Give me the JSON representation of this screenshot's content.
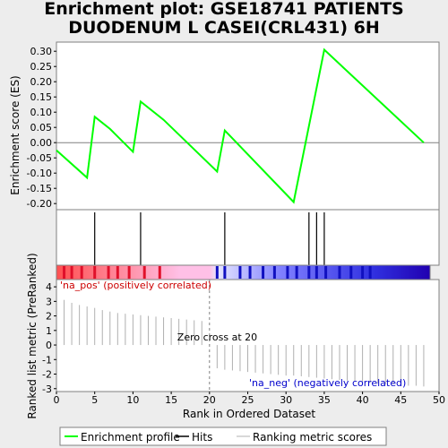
{
  "title_line1": "Enrichment plot: GSE18741 PATIENTS",
  "title_line2": "DUODENUM L CASEI(CRL431) 6H",
  "chart_data": {
    "type": "line",
    "top_panel": {
      "ylabel": "Enrichment score (ES)",
      "ylim": [
        -0.22,
        0.33
      ],
      "yticks": [
        "0.30",
        "0.25",
        "0.20",
        "0.15",
        "0.10",
        "0.05",
        "0.00",
        "-0.05",
        "-0.10",
        "-0.15",
        "-0.20"
      ],
      "ytick_values": [
        0.3,
        0.25,
        0.2,
        0.15,
        0.1,
        0.05,
        0.0,
        -0.05,
        -0.1,
        -0.15,
        -0.2
      ],
      "series": [
        {
          "name": "Enrichment profile",
          "color": "#00ff00",
          "x": [
            0,
            4,
            5,
            7,
            10,
            11,
            14,
            21,
            22,
            31,
            35,
            48
          ],
          "y": [
            -0.025,
            -0.115,
            0.085,
            0.045,
            -0.03,
            0.135,
            0.075,
            -0.095,
            0.04,
            -0.195,
            0.305,
            0.0
          ]
        }
      ]
    },
    "hits": {
      "x": [
        5,
        11,
        22,
        33,
        34,
        35
      ],
      "color": "#000000"
    },
    "ranked_list": {
      "ylabel": "Ranked list metric (PreRanked)",
      "xlabel": "Rank in Ordered Dataset",
      "ylim": [
        -3.2,
        4.5
      ],
      "yticks": [
        "4",
        "3",
        "2",
        "1",
        "0",
        "-1",
        "-2",
        "-3"
      ],
      "ytick_values": [
        4,
        3,
        2,
        1,
        0,
        -1,
        -2,
        -3
      ],
      "xticks": [
        "0",
        "5",
        "10",
        "15",
        "20",
        "25",
        "30",
        "35",
        "40",
        "45",
        "50"
      ],
      "xtick_values": [
        0,
        5,
        10,
        15,
        20,
        25,
        30,
        35,
        40,
        45,
        50
      ],
      "xlim": [
        0,
        50
      ],
      "bar_color": "#b0b0b0",
      "x": [
        1,
        2,
        3,
        4,
        5,
        6,
        7,
        8,
        9,
        10,
        11,
        12,
        13,
        14,
        15,
        16,
        17,
        18,
        19,
        20,
        21,
        22,
        23,
        24,
        25,
        26,
        27,
        28,
        29,
        30,
        31,
        32,
        33,
        34,
        35,
        36,
        37,
        38,
        39,
        40,
        41,
        42,
        43,
        44,
        45,
        46,
        47,
        48
      ],
      "values": [
        3.1,
        2.9,
        2.75,
        2.65,
        2.55,
        2.4,
        2.3,
        2.2,
        2.15,
        2.1,
        2.05,
        2.0,
        1.95,
        1.9,
        1.85,
        1.8,
        1.75,
        1.7,
        1.65,
        0.05,
        -1.6,
        -1.7,
        -1.75,
        -1.8,
        -1.85,
        -1.9,
        -1.95,
        -2.0,
        -2.05,
        -2.1,
        -2.1,
        -2.15,
        -2.2,
        -2.25,
        -2.3,
        -2.35,
        -2.4,
        -2.45,
        -2.5,
        -2.55,
        -2.6,
        -2.65,
        -2.7,
        -2.7,
        -2.75,
        -2.8,
        -2.8,
        -2.85
      ],
      "zero_cross": {
        "x": 20,
        "label": "Zero cross at 20"
      },
      "pos_label": "'na_pos' (positively correlated)",
      "neg_label": "'na_neg' (negatively correlated)",
      "pos_color": "#cc0000",
      "neg_color": "#0000cc"
    },
    "legend": {
      "placement": "bottom",
      "entries": [
        {
          "label": "Enrichment profile",
          "color": "#00ff00"
        },
        {
          "label": "Hits",
          "color": "#000000"
        },
        {
          "label": "Ranking metric scores",
          "color": "#b0b0b0"
        }
      ]
    }
  }
}
